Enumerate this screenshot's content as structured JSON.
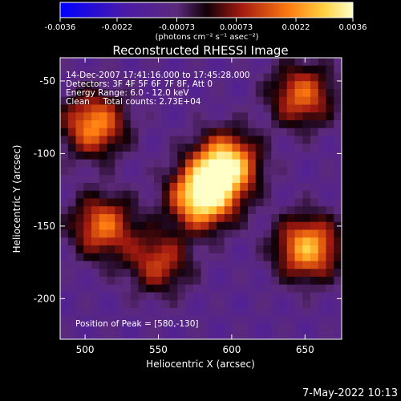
{
  "chart_data": {
    "type": "heatmap",
    "title": "Reconstructed RHESSI Image",
    "xlabel": "Heliocentric X (arcsec)",
    "ylabel": "Heliocentric Y (arcsec)",
    "xlim": [
      483,
      675
    ],
    "ylim": [
      -228,
      -34
    ],
    "x_ticks": [
      500,
      550,
      600,
      650
    ],
    "y_ticks": [
      -50,
      -100,
      -150,
      -200
    ],
    "colorbar": {
      "ticks": [
        "-0.0036",
        "-0.0022",
        "-0.00073",
        "0.00073",
        "0.0022",
        "0.0036"
      ],
      "range": [
        -0.0036,
        0.0036
      ],
      "unit_label": "(photons cm⁻² s⁻¹ asec⁻²)"
    },
    "annotations": {
      "time": "14-Dec-2007 17:41:16.000 to 17:45:28.000",
      "detectors": "Detectors: 3F 4F 5F 6F 7F 8F, Att 0",
      "energy": "Energy Range: 6.0 - 12.0 keV",
      "clean": "Clean     Total counts: 2.73E+04",
      "peak": "Position of Peak = [580,-130]"
    },
    "sources": [
      {
        "x": 580,
        "y": -130,
        "value": 0.0036
      },
      {
        "x": 596,
        "y": -108,
        "value": 0.0033
      },
      {
        "x": 652,
        "y": -165,
        "value": 0.0026
      },
      {
        "x": 506,
        "y": -80,
        "value": 0.0022
      },
      {
        "x": 512,
        "y": -150,
        "value": 0.0018
      },
      {
        "x": 648,
        "y": -60,
        "value": 0.0017
      },
      {
        "x": 550,
        "y": -175,
        "value": 0.0012
      }
    ]
  },
  "timestamp": "7-May-2022 10:13"
}
